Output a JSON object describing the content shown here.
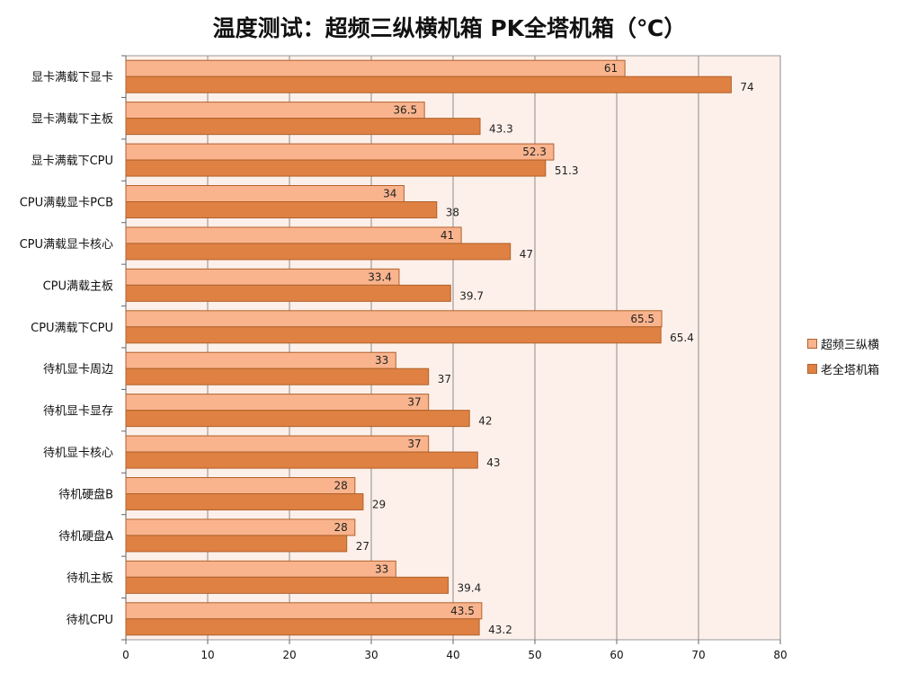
{
  "chart_data": {
    "type": "bar",
    "orientation": "horizontal",
    "title": "温度测试：超频三纵横机箱 PK全塔机箱（℃）",
    "categories": [
      "显卡满载下显卡",
      "显卡满载下主板",
      "显卡满载下CPU",
      "CPU满载显卡PCB",
      "CPU满载显卡核心",
      "CPU满载主板",
      "CPU满载下CPU",
      "待机显卡周边",
      "待机显卡显存",
      "待机显卡核心",
      "待机硬盘B",
      "待机硬盘A",
      "待机主板",
      "待机CPU"
    ],
    "series": [
      {
        "name": "超频三纵横",
        "color": "#f9b48e",
        "values": [
          61,
          36.5,
          52.3,
          34,
          41,
          33.4,
          65.5,
          33,
          37,
          37,
          28,
          28,
          33,
          43.5
        ]
      },
      {
        "name": "老全塔机箱",
        "color": "#df8143",
        "values": [
          74,
          43.3,
          51.3,
          38,
          47,
          39.7,
          65.4,
          37,
          42,
          43,
          29,
          27,
          39.4,
          43.2
        ]
      }
    ],
    "xlim": [
      0,
      80
    ],
    "xticks": [
      0,
      10,
      20,
      30,
      40,
      50,
      60,
      70,
      80
    ],
    "grid": true,
    "legend_position": "right",
    "plot_background": "#fdf0ea"
  }
}
